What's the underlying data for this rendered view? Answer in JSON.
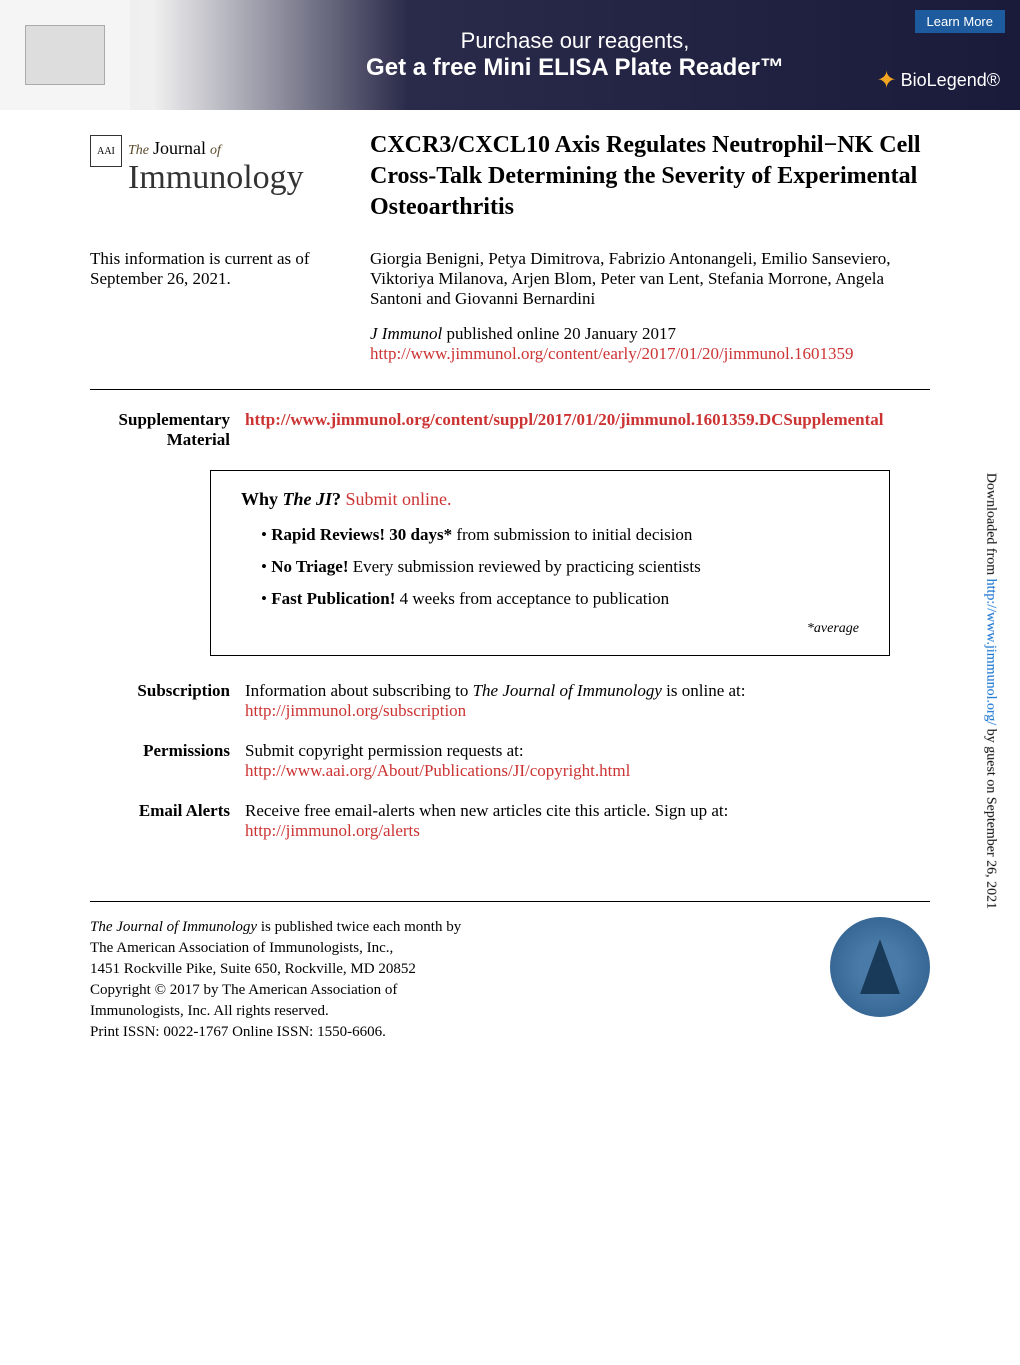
{
  "banner": {
    "line1": "Purchase our reagents,",
    "line2": "Get a free Mini ELISA Plate Reader™",
    "brand": "BioLegend®",
    "learn_more": "Learn More"
  },
  "journal": {
    "the": "The",
    "journal_word": "Journal",
    "of": "of",
    "immunology": "Immunology",
    "badge": "AAI"
  },
  "article": {
    "title": "CXCR3/CXCL10 Axis Regulates Neutrophil−NK Cell Cross-Talk Determining the Severity of Experimental Osteoarthritis",
    "authors": "Giorgia Benigni, Petya Dimitrova, Fabrizio Antonangeli, Emilio Sanseviero, Viktoriya Milanova, Arjen Blom, Peter van Lent, Stefania Morrone, Angela Santoni and Giovanni Bernardini",
    "citation_journal": "J Immunol",
    "citation_text": " published online 20 January 2017",
    "citation_url": "http://www.jimmunol.org/content/early/2017/01/20/jimmunol.1601359"
  },
  "current_info": "This information is current as of September 26, 2021.",
  "sections": {
    "supplementary": {
      "label": "Supplementary Material",
      "url": "http://www.jimmunol.org/content/suppl/2017/01/20/jimmunol.1601359.DCSupplemental"
    },
    "why_ji": {
      "title_prefix": "Why ",
      "title_em": "The JI",
      "title_suffix": "? ",
      "submit_link": "Submit online.",
      "items": [
        {
          "bold": "Rapid Reviews! 30 days*",
          "rest": " from submission to initial decision"
        },
        {
          "bold": "No Triage!",
          "rest": " Every submission reviewed by practicing scientists"
        },
        {
          "bold": "Fast Publication!",
          "rest": " 4 weeks from acceptance to publication"
        }
      ],
      "average": "*average"
    },
    "subscription": {
      "label": "Subscription",
      "text_prefix": "Information about subscribing to ",
      "text_em": "The Journal of Immunology",
      "text_suffix": " is online at:",
      "url": "http://jimmunol.org/subscription"
    },
    "permissions": {
      "label": "Permissions",
      "text": "Submit copyright permission requests at:",
      "url": "http://www.aai.org/About/Publications/JI/copyright.html"
    },
    "email_alerts": {
      "label": "Email Alerts",
      "text": "Receive free email-alerts when new articles cite this article. Sign up at:",
      "url": "http://jimmunol.org/alerts"
    }
  },
  "side_text": {
    "prefix": "Downloaded from ",
    "url": "http://www.jimmunol.org/",
    "suffix": " by guest on September 26, 2021"
  },
  "footer": {
    "line1_em": "The Journal of Immunology",
    "line1_rest": " is published twice each month by",
    "line2": "The American Association of Immunologists, Inc.,",
    "line3": "1451 Rockville Pike, Suite 650, Rockville, MD 20852",
    "line4": "Copyright © 2017 by The American Association of",
    "line5": "Immunologists, Inc. All rights reserved.",
    "line6": "Print ISSN: 0022-1767 Online ISSN: 1550-6606."
  },
  "colors": {
    "link_red": "#cc3333",
    "link_blue": "#0066cc",
    "banner_dark": "#1a1a3a",
    "learn_more_bg": "#1e5b9e"
  }
}
